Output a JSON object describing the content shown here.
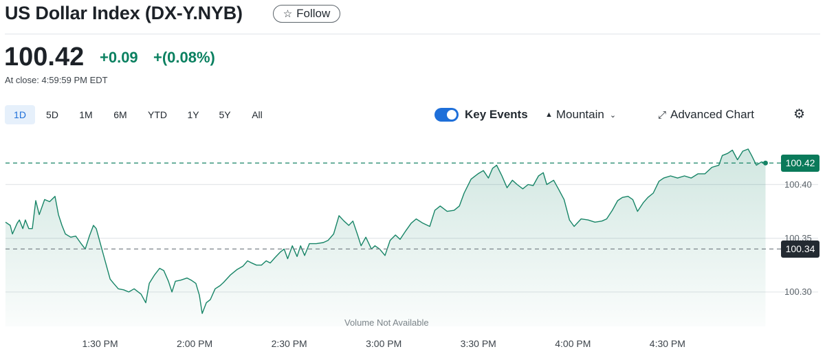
{
  "header": {
    "title": "US Dollar Index (DX-Y.NYB)",
    "follow_label": "Follow",
    "price": "100.42",
    "change": "+0.09",
    "change_percent": "+(0.08%)",
    "close_time": "At close: 4:59:59 PM EDT"
  },
  "toolbar": {
    "ranges": [
      "1D",
      "5D",
      "1M",
      "6M",
      "YTD",
      "1Y",
      "5Y",
      "All"
    ],
    "active_range": "1D",
    "key_events_label": "Key Events",
    "key_events_on": true,
    "chart_type_label": "Mountain",
    "advanced_chart_label": "Advanced Chart"
  },
  "colors": {
    "up": "#0a8060",
    "line": "#168466",
    "accent": "#1e6fd9",
    "prev_close_badge": "#232a31"
  },
  "chart_data": {
    "type": "area",
    "xlabel": "",
    "ylabel": "",
    "x_unit": "minutes since 1:00 PM",
    "xlim": [
      0,
      241
    ],
    "ylim": [
      100.268,
      100.447
    ],
    "y_ticks": [
      {
        "value": 100.4,
        "label": "100.40"
      },
      {
        "value": 100.35,
        "label": "100.35"
      },
      {
        "value": 100.3,
        "label": "100.30"
      }
    ],
    "x_ticks": [
      {
        "value": 30,
        "label": "1:30 PM"
      },
      {
        "value": 60,
        "label": "2:00 PM"
      },
      {
        "value": 90,
        "label": "2:30 PM"
      },
      {
        "value": 120,
        "label": "3:00 PM"
      },
      {
        "value": 150,
        "label": "3:30 PM"
      },
      {
        "value": 180,
        "label": "4:00 PM"
      },
      {
        "value": 210,
        "label": "4:30 PM"
      }
    ],
    "current_price": {
      "value": 100.42,
      "label": "100.42"
    },
    "previous_close": {
      "value": 100.34,
      "label": "100.34"
    },
    "volume_note": "Volume Not Available",
    "points": [
      [
        0,
        100.365
      ],
      [
        1.5,
        100.362
      ],
      [
        2.2,
        100.354
      ],
      [
        3.7,
        100.364
      ],
      [
        4.4,
        100.367
      ],
      [
        5.5,
        100.359
      ],
      [
        6.3,
        100.367
      ],
      [
        7.4,
        100.359
      ],
      [
        8.5,
        100.359
      ],
      [
        9.6,
        100.385
      ],
      [
        10.7,
        100.372
      ],
      [
        12.4,
        100.386
      ],
      [
        14,
        100.384
      ],
      [
        15.7,
        100.389
      ],
      [
        16.8,
        100.372
      ],
      [
        17.9,
        100.362
      ],
      [
        19,
        100.354
      ],
      [
        20.7,
        100.351
      ],
      [
        22.3,
        100.352
      ],
      [
        24,
        100.345
      ],
      [
        25.3,
        100.34
      ],
      [
        26.6,
        100.352
      ],
      [
        27.9,
        100.362
      ],
      [
        28.8,
        100.359
      ],
      [
        30.1,
        100.345
      ],
      [
        31.4,
        100.331
      ],
      [
        33.2,
        100.312
      ],
      [
        34.3,
        100.308
      ],
      [
        35.8,
        100.303
      ],
      [
        37.5,
        100.302
      ],
      [
        39.1,
        100.3
      ],
      [
        40.8,
        100.303
      ],
      [
        43,
        100.298
      ],
      [
        44.5,
        100.29
      ],
      [
        45.6,
        100.308
      ],
      [
        47.3,
        100.316
      ],
      [
        48.9,
        100.322
      ],
      [
        50.2,
        100.32
      ],
      [
        51.7,
        100.31
      ],
      [
        52.8,
        100.3
      ],
      [
        53.9,
        100.31
      ],
      [
        55.6,
        100.311
      ],
      [
        57.6,
        100.313
      ],
      [
        58.9,
        100.311
      ],
      [
        60.4,
        100.308
      ],
      [
        61.5,
        100.297
      ],
      [
        62.4,
        100.28
      ],
      [
        63.7,
        100.29
      ],
      [
        65,
        100.293
      ],
      [
        66.5,
        100.303
      ],
      [
        68.1,
        100.306
      ],
      [
        69.2,
        100.309
      ],
      [
        71.4,
        100.316
      ],
      [
        73.5,
        100.321
      ],
      [
        75.3,
        100.324
      ],
      [
        76.8,
        100.329
      ],
      [
        78.1,
        100.327
      ],
      [
        79.6,
        100.325
      ],
      [
        81.2,
        100.325
      ],
      [
        82.7,
        100.329
      ],
      [
        84,
        100.327
      ],
      [
        85.5,
        100.332
      ],
      [
        87.1,
        100.337
      ],
      [
        88.4,
        100.34
      ],
      [
        89.5,
        100.331
      ],
      [
        91,
        100.343
      ],
      [
        92.5,
        100.333
      ],
      [
        93.6,
        100.343
      ],
      [
        94.9,
        100.334
      ],
      [
        96.4,
        100.345
      ],
      [
        98.6,
        100.345
      ],
      [
        100.8,
        100.346
      ],
      [
        102.3,
        100.348
      ],
      [
        104.1,
        100.354
      ],
      [
        105.8,
        100.371
      ],
      [
        107.4,
        100.366
      ],
      [
        108.9,
        100.362
      ],
      [
        110.2,
        100.366
      ],
      [
        111.7,
        100.353
      ],
      [
        112.8,
        100.343
      ],
      [
        114.3,
        100.351
      ],
      [
        116.1,
        100.34
      ],
      [
        117.2,
        100.343
      ],
      [
        118.7,
        100.34
      ],
      [
        120.4,
        100.334
      ],
      [
        122,
        100.348
      ],
      [
        123.7,
        100.353
      ],
      [
        125.2,
        100.349
      ],
      [
        127,
        100.357
      ],
      [
        128.7,
        100.364
      ],
      [
        130.3,
        100.368
      ],
      [
        132.4,
        100.364
      ],
      [
        134.6,
        100.361
      ],
      [
        136.2,
        100.376
      ],
      [
        137.9,
        100.38
      ],
      [
        140.1,
        100.375
      ],
      [
        142.3,
        100.376
      ],
      [
        144,
        100.38
      ],
      [
        145.5,
        100.392
      ],
      [
        147.7,
        100.405
      ],
      [
        149.9,
        100.41
      ],
      [
        151.6,
        100.413
      ],
      [
        153.2,
        100.406
      ],
      [
        154.5,
        100.415
      ],
      [
        155.8,
        100.418
      ],
      [
        157.5,
        100.408
      ],
      [
        159.1,
        100.397
      ],
      [
        160.8,
        100.404
      ],
      [
        162.3,
        100.4
      ],
      [
        164.1,
        100.396
      ],
      [
        165.8,
        100.4
      ],
      [
        167.4,
        100.399
      ],
      [
        169.1,
        100.408
      ],
      [
        170.6,
        100.411
      ],
      [
        171.7,
        100.4
      ],
      [
        173.9,
        100.404
      ],
      [
        175.4,
        100.396
      ],
      [
        177.2,
        100.386
      ],
      [
        178.9,
        100.367
      ],
      [
        180.4,
        100.361
      ],
      [
        182.6,
        100.368
      ],
      [
        184.8,
        100.367
      ],
      [
        187,
        100.365
      ],
      [
        189.2,
        100.366
      ],
      [
        190.7,
        100.368
      ],
      [
        192.5,
        100.376
      ],
      [
        194.2,
        100.385
      ],
      [
        195.7,
        100.388
      ],
      [
        197.5,
        100.389
      ],
      [
        199,
        100.386
      ],
      [
        200.5,
        100.375
      ],
      [
        202.3,
        100.383
      ],
      [
        203.8,
        100.388
      ],
      [
        205.5,
        100.392
      ],
      [
        207.3,
        100.403
      ],
      [
        208.8,
        100.406
      ],
      [
        211,
        100.408
      ],
      [
        213.2,
        100.406
      ],
      [
        215.4,
        100.408
      ],
      [
        217.5,
        100.406
      ],
      [
        219.7,
        100.41
      ],
      [
        221.9,
        100.41
      ],
      [
        224.1,
        100.416
      ],
      [
        226.3,
        100.418
      ],
      [
        227.4,
        100.427
      ],
      [
        229.1,
        100.429
      ],
      [
        230.6,
        100.432
      ],
      [
        232.2,
        100.423
      ],
      [
        233.9,
        100.431
      ],
      [
        235.6,
        100.433
      ],
      [
        236.7,
        100.427
      ],
      [
        238.2,
        100.418
      ],
      [
        239.8,
        100.421
      ],
      [
        241.1,
        100.42
      ]
    ]
  }
}
